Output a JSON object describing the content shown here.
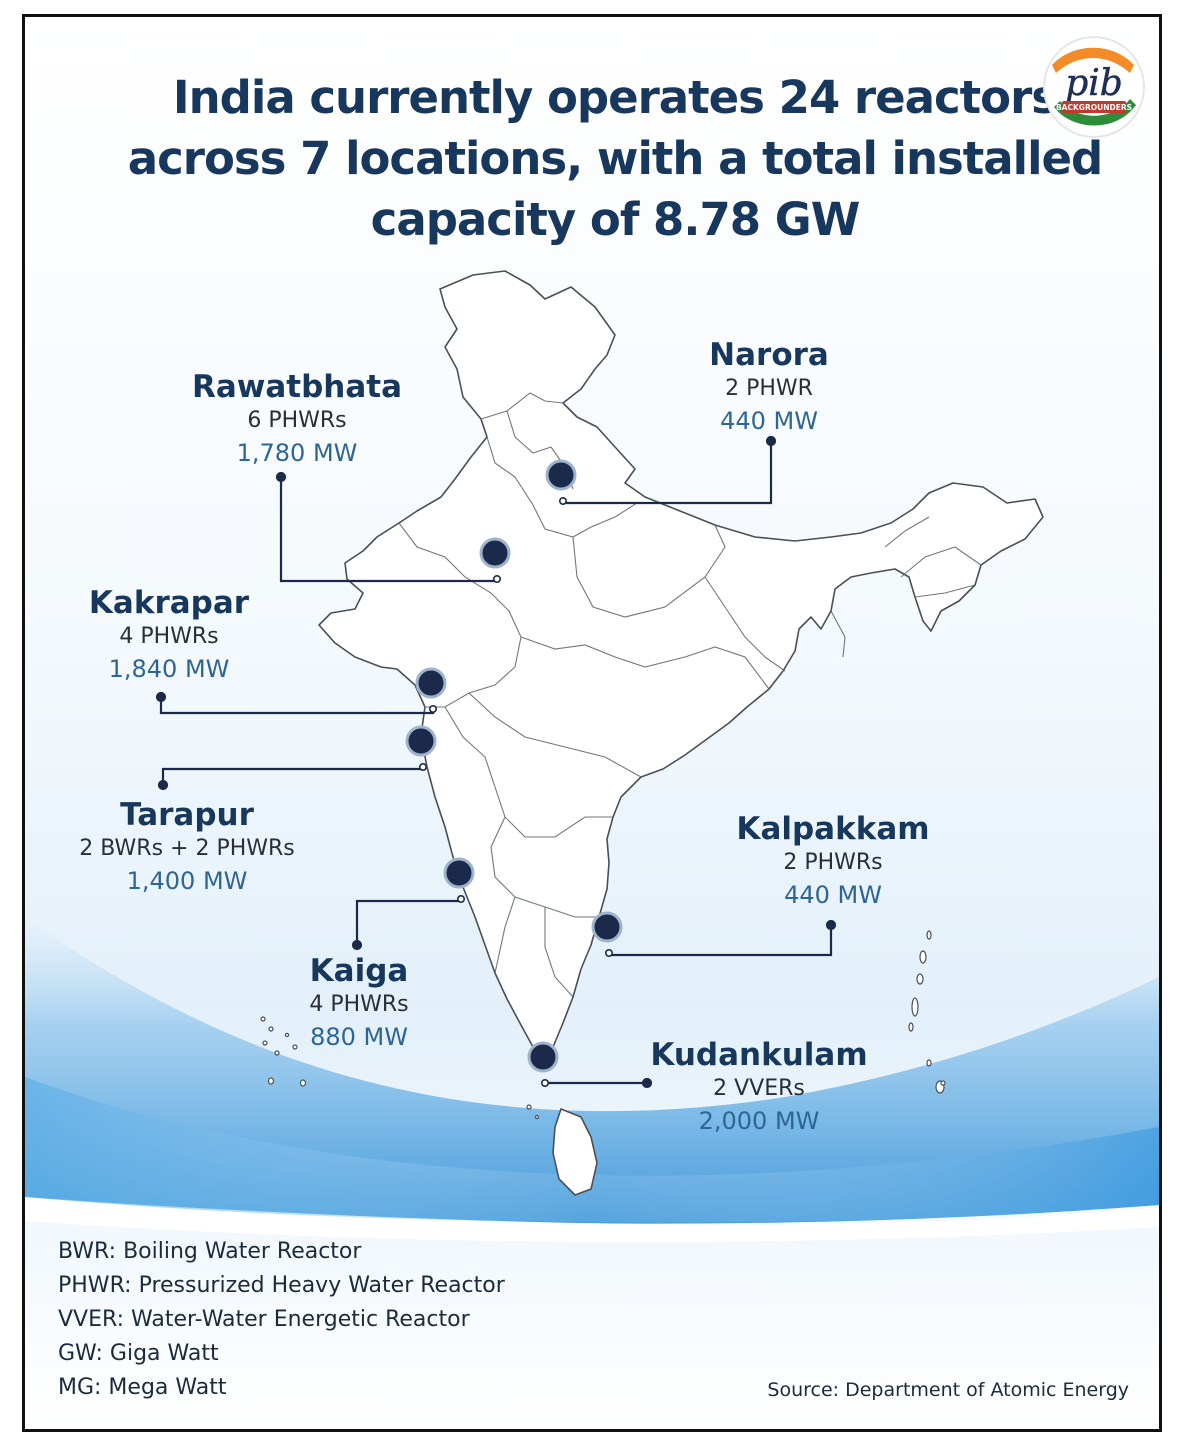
{
  "title_lines": [
    "India currently operates 24 reactors",
    "across 7 locations, with a total installed",
    "capacity of 8.78 GW"
  ],
  "logo": {
    "text": "pib",
    "subtext": "BACKGROUNDERS",
    "colors": [
      "#f28c28",
      "#ffffff",
      "#2e8b3a"
    ]
  },
  "sites": [
    {
      "name": "Rawatbhata",
      "type": "6 PHWRs",
      "capacity": "1,780 MW"
    },
    {
      "name": "Narora",
      "type": "2 PHWR",
      "capacity": "440 MW"
    },
    {
      "name": "Kakrapar",
      "type": "4 PHWRs",
      "capacity": "1,840 MW"
    },
    {
      "name": "Tarapur",
      "type": "2 BWRs + 2 PHWRs",
      "capacity": "1,400 MW"
    },
    {
      "name": "Kaiga",
      "type": "4 PHWRs",
      "capacity": "880 MW"
    },
    {
      "name": "Kalpakkam",
      "type": "2 PHWRs",
      "capacity": "440 MW"
    },
    {
      "name": "Kudankulam",
      "type": "2 VVERs",
      "capacity": "2,000 MW"
    }
  ],
  "legend": [
    "BWR: Boiling Water Reactor",
    "PHWR: Pressurized Heavy Water Reactor",
    "VVER: Water-Water Energetic Reactor",
    "GW: Giga Watt",
    "MG: Mega Watt"
  ],
  "source": "Source: Department of Atomic Energy",
  "colors": {
    "title": "#17375d",
    "marker": "#1b2a4a",
    "capacity": "#2f6594",
    "map_stroke": "#4a4f57"
  }
}
